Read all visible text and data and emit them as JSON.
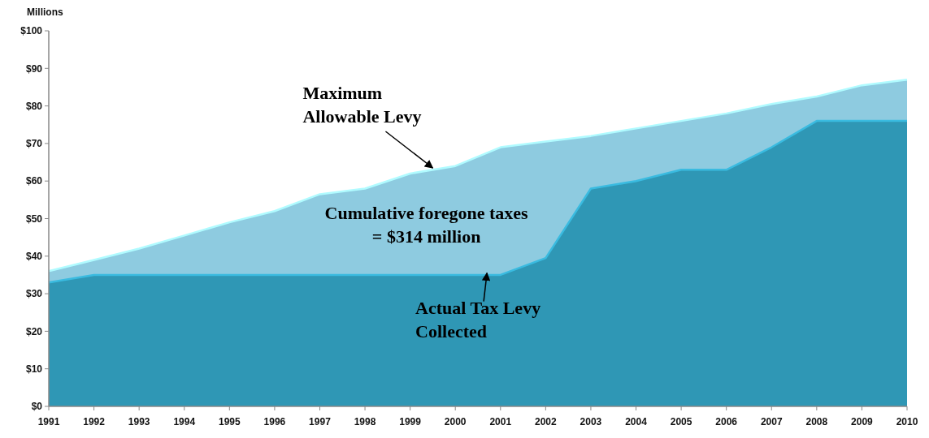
{
  "chart_data": {
    "type": "area",
    "ylabel": "Millions",
    "x": [
      1991,
      1992,
      1993,
      1994,
      1995,
      1996,
      1997,
      1998,
      1999,
      2000,
      2001,
      2002,
      2003,
      2004,
      2005,
      2006,
      2007,
      2008,
      2009,
      2010
    ],
    "xlim": [
      1991,
      2010
    ],
    "xticks": [
      1991,
      1992,
      1993,
      1994,
      1995,
      1996,
      1997,
      1998,
      1999,
      2000,
      2001,
      2002,
      2003,
      2004,
      2005,
      2006,
      2007,
      2008,
      2009,
      2010
    ],
    "ylim": [
      0,
      100
    ],
    "yticks": [
      {
        "value": 0,
        "label": "$0"
      },
      {
        "value": 10,
        "label": "$10"
      },
      {
        "value": 20,
        "label": "$20"
      },
      {
        "value": 30,
        "label": "$30"
      },
      {
        "value": 40,
        "label": "$40"
      },
      {
        "value": 50,
        "label": "$50"
      },
      {
        "value": 60,
        "label": "$60"
      },
      {
        "value": 70,
        "label": "$70"
      },
      {
        "value": 80,
        "label": "$80"
      },
      {
        "value": 90,
        "label": "$90"
      },
      {
        "value": 100,
        "label": "$100"
      }
    ],
    "series": [
      {
        "color": "#8ecbe0",
        "values": [
          36,
          39,
          42,
          45.5,
          49,
          52,
          56.5,
          58,
          62,
          64,
          69,
          70.5,
          72,
          74,
          76,
          78,
          80.5,
          82.5,
          85.5,
          87
        ]
      },
      {
        "color": "#2f97b5",
        "values": [
          33,
          35,
          35,
          35,
          35,
          35,
          35,
          35,
          35,
          35,
          35,
          39.5,
          58,
          60,
          63,
          63,
          69,
          76,
          76,
          76
        ]
      }
    ],
    "annotations": [
      {
        "text": "Maximum\nAllowable Levy",
        "x": 1999.5,
        "y": 63.5
      },
      {
        "text": "Actual Tax Levy\nCollected",
        "x": 2000.7,
        "y": 35.5
      },
      "Cumulative foregone taxes\n= $314 million"
    ]
  }
}
